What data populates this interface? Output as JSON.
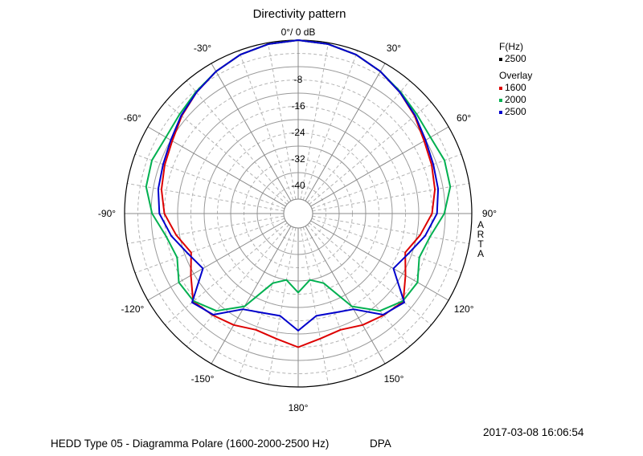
{
  "header": {
    "title": "Directivity pattern"
  },
  "footer": {
    "description": "HEDD Type 05 - Diagramma Polare (1600-2000-2500 Hz)",
    "brand": "DPA",
    "timestamp": "2017-03-08  16:06:54"
  },
  "watermark": {
    "letters": [
      "A",
      "R",
      "T",
      "A"
    ]
  },
  "legend": {
    "freq_header": "F(Hz)",
    "freq_value": "2500",
    "freq_color": "#000000",
    "overlay_header": "Overlay",
    "overlay_items": [
      {
        "label": "1600",
        "color": "#dd0000"
      },
      {
        "label": "2000",
        "color": "#00b050"
      },
      {
        "label": "2500",
        "color": "#0000cc"
      }
    ]
  },
  "chart_data": {
    "type": "polar",
    "title": "Directivity pattern",
    "radial_unit": "dB",
    "radial_range": [
      -48,
      0
    ],
    "radial_ticks": [
      {
        "value": 0,
        "label": "0°/ 0 dB"
      },
      {
        "value": -8,
        "label": "-8"
      },
      {
        "value": -16,
        "label": "-16"
      },
      {
        "value": -24,
        "label": "-24"
      },
      {
        "value": -32,
        "label": "-32"
      },
      {
        "value": -40,
        "label": "-40"
      }
    ],
    "angle_ticks": [
      {
        "angle": 30,
        "label": "30°"
      },
      {
        "angle": 60,
        "label": "60°"
      },
      {
        "angle": 90,
        "label": "90°"
      },
      {
        "angle": 120,
        "label": "120°"
      },
      {
        "angle": 150,
        "label": "150°"
      },
      {
        "angle": 180,
        "label": "180°"
      },
      {
        "angle": -150,
        "label": "-150°"
      },
      {
        "angle": -120,
        "label": "-120°"
      },
      {
        "angle": -90,
        "label": "-90°"
      },
      {
        "angle": -60,
        "label": "-60°"
      },
      {
        "angle": -30,
        "label": "-30°"
      }
    ],
    "grid": true,
    "angles": [
      0,
      10,
      20,
      30,
      40,
      50,
      60,
      70,
      80,
      90,
      100,
      110,
      120,
      130,
      140,
      150,
      160,
      170,
      180
    ],
    "series": [
      {
        "name": "1600",
        "color": "#dd0000",
        "values": [
          0,
          -0.4,
          -1.3,
          -2.8,
          -4.6,
          -6.5,
          -8.5,
          -9.5,
          -10.5,
          -12,
          -15,
          -18,
          -15,
          -11,
          -12.3,
          -13.5,
          -15,
          -14,
          -12
        ]
      },
      {
        "name": "2000",
        "color": "#00b050",
        "values": [
          0,
          -0.4,
          -1.3,
          -2.8,
          -4.4,
          -5.7,
          -6.3,
          -5.4,
          -5.8,
          -8.3,
          -12,
          -13.5,
          -10.8,
          -11.2,
          -14,
          -20,
          -30,
          -32,
          -28.5
        ]
      },
      {
        "name": "2500",
        "color": "#0000cc",
        "values": [
          0,
          -0.4,
          -1.3,
          -2.8,
          -4.6,
          -6.3,
          -8,
          -9,
          -9.5,
          -10.5,
          -13.5,
          -17,
          -19.2,
          -10.6,
          -12.5,
          -19,
          -20.5,
          -21,
          -17
        ]
      }
    ]
  }
}
